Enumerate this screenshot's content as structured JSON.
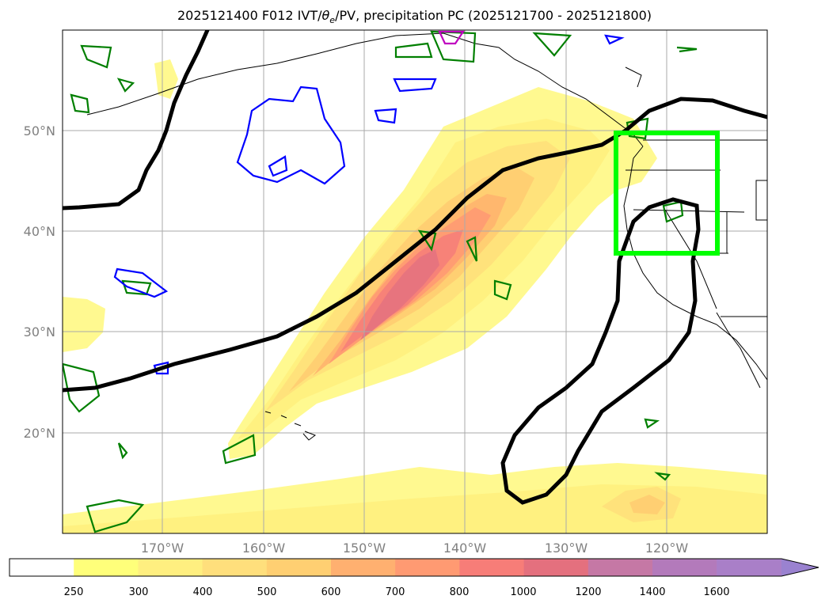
{
  "title": {
    "prefix": "2025121400 F012 IVT/",
    "theta": "θ",
    "theta_sub": "e",
    "suffix": "/PV, precipitation PC (2025121700 - 2025121800)"
  },
  "map": {
    "lat_labels": [
      "50°N",
      "40°N",
      "30°N",
      "20°N"
    ],
    "lon_labels": [
      "170°W",
      "160°W",
      "150°W",
      "140°W",
      "130°W",
      "120°W"
    ]
  },
  "colorbar": {
    "ticks": [
      "250",
      "300",
      "400",
      "500",
      "600",
      "700",
      "800",
      "1000",
      "1200",
      "1400",
      "1600"
    ],
    "colors": [
      "#ffffff",
      "#ffff7a",
      "#ffef80",
      "#ffdf7c",
      "#ffcf72",
      "#ffb070",
      "#ff9a72",
      "#f77d78",
      "#e4707e",
      "#c578a5",
      "#b37abb",
      "#a97fc8",
      "#9a82d0"
    ]
  },
  "ivt_colors": {
    "c250": "#fff98a",
    "c300": "#fff07f",
    "c400": "#ffe07a",
    "c500": "#ffcd72",
    "c600": "#ffb56e",
    "c700": "#ff9b72",
    "c800": "#f78178",
    "c1000": "#e6737e"
  }
}
